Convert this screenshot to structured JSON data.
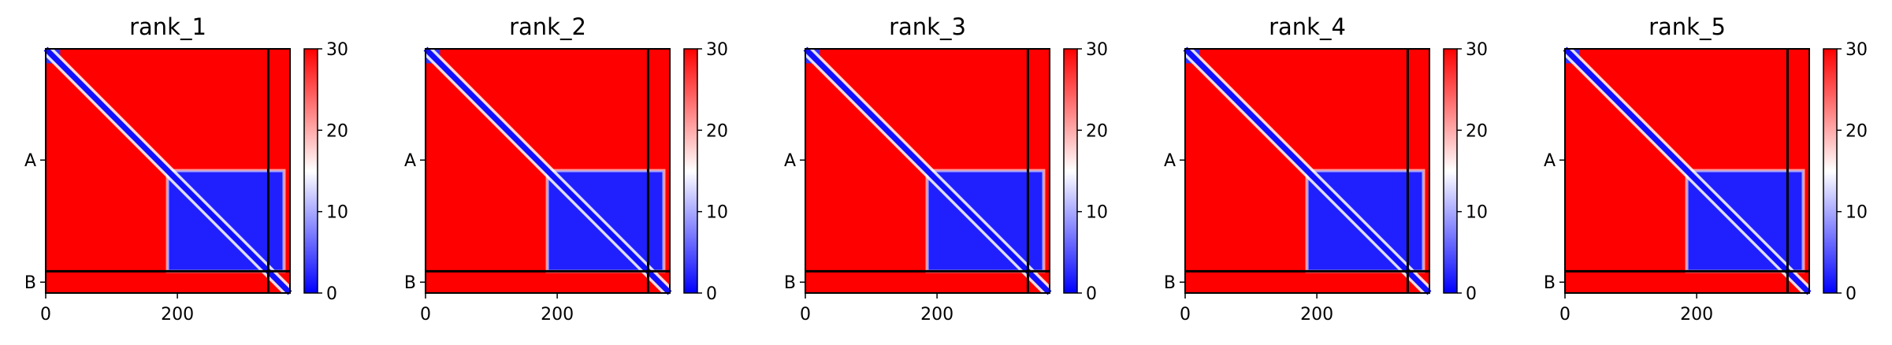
{
  "chart_data": {
    "type": "heatmap",
    "colormap": [
      "#0000ff",
      "#ffffff",
      "#ff0000"
    ],
    "colorbar": {
      "min": 0,
      "max": 30,
      "ticks": [
        0,
        10,
        20,
        30
      ]
    },
    "x_ticks": [
      0,
      200
    ],
    "x_range": [
      0,
      371
    ],
    "y_labels": [
      "A",
      "B"
    ],
    "chains": [
      {
        "name": "A",
        "start": 0,
        "end": 338
      },
      {
        "name": "B",
        "start": 338,
        "end": 371
      }
    ],
    "panels": [
      {
        "title": "rank_1"
      },
      {
        "title": "rank_2"
      },
      {
        "title": "rank_3"
      },
      {
        "title": "rank_4"
      },
      {
        "title": "rank_5"
      }
    ]
  }
}
